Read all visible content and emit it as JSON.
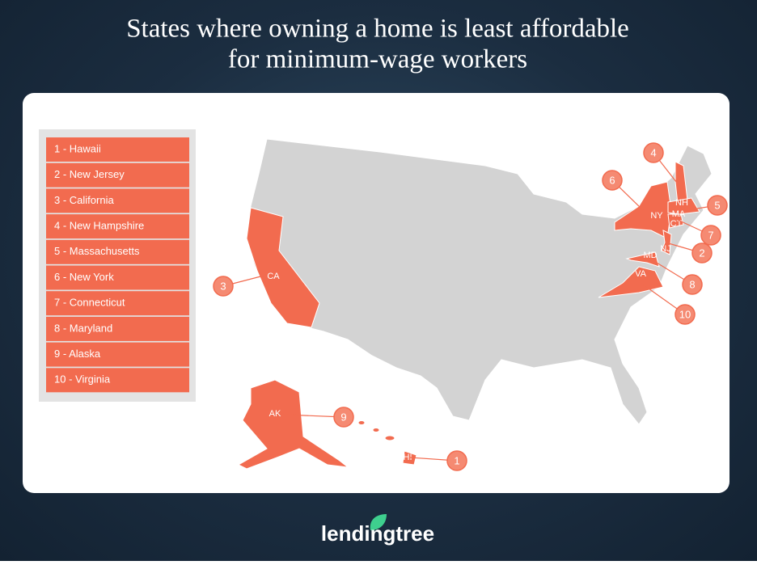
{
  "title_lines": [
    "States where owning a home is least affordable",
    "for minimum-wage workers"
  ],
  "ranking": [
    "1 - Hawaii",
    "2 - New Jersey",
    "3 - California",
    "4 - New Hampshire",
    "5 - Massachusetts",
    "6 - New York",
    "7 - Connecticut",
    "8 - Maryland",
    "9 - Alaska",
    "10 - Virginia"
  ],
  "state_labels": [
    "CA",
    "AK",
    "HI",
    "NY",
    "NH",
    "MA",
    "CT",
    "NJ",
    "MD",
    "VA"
  ],
  "callouts": [
    "1",
    "2",
    "3",
    "4",
    "5",
    "6",
    "7",
    "8",
    "9",
    "10"
  ],
  "logo": "lendingtree"
}
